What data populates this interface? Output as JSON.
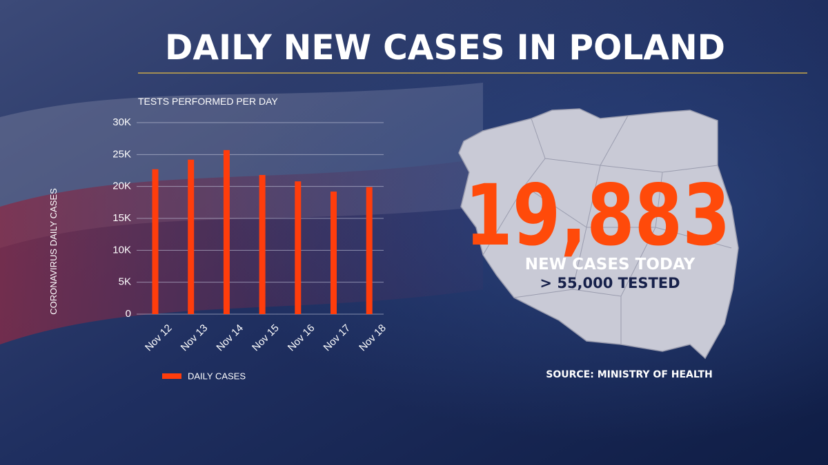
{
  "header": {
    "title": "DAILY NEW CASES IN POLAND"
  },
  "chart_data": {
    "type": "bar",
    "title": "TESTS PERFORMED PER DAY",
    "y_label": "CORONAVIRUS DAILY CASES",
    "categories": [
      "Nov 12",
      "Nov 13",
      "Nov 14",
      "Nov 15",
      "Nov 16",
      "Nov 17",
      "Nov 18"
    ],
    "series": [
      {
        "name": "DAILY CASES",
        "color": "#ff3d0c",
        "values": [
          22700,
          24200,
          25700,
          21800,
          20800,
          19200,
          19900
        ]
      }
    ],
    "ylim": [
      0,
      30000
    ],
    "yticks": [
      0,
      {
        "value": 5000,
        "label": "5K"
      },
      {
        "value": 10000,
        "label": "10K"
      },
      {
        "value": 15000,
        "label": "15K"
      },
      {
        "value": 20000,
        "label": "20K"
      },
      {
        "value": 25000,
        "label": "25K"
      },
      {
        "value": 30000,
        "label": "30K"
      }
    ],
    "grid": true,
    "legend": "bottom"
  },
  "highlight": {
    "number": "19,883",
    "caption": "NEW CASES TODAY",
    "tested": "> 55,000 TESTED",
    "source": "SOURCE: MINISTRY OF HEALTH"
  }
}
